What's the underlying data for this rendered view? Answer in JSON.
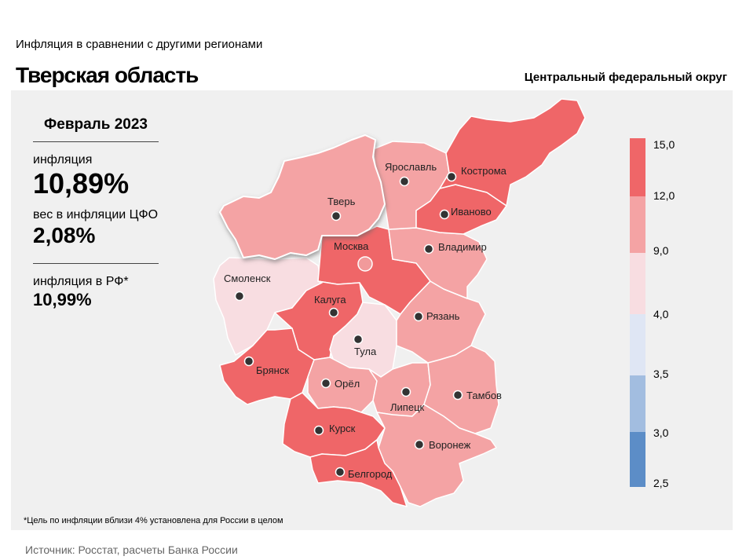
{
  "header": {
    "subtitle": "Инфляция  в сравнении  с другими  регионами",
    "title": "Тверская область",
    "district": "Центральный федеральный округ"
  },
  "stats": {
    "period": "Февраль 2023",
    "inflation_label": "инфляция",
    "inflation_value": "10,89%",
    "weight_label": "вес в инфляции  ЦФО",
    "weight_value": "2,08%",
    "rf_label": "инфляция  в РФ*",
    "rf_value": "10,99%"
  },
  "map": {
    "selected_region": "Тверь",
    "regions": [
      {
        "name": "Тверь",
        "band": "9-12",
        "color": "#f4a3a4"
      },
      {
        "name": "Ярославль",
        "band": "9-12",
        "color": "#f4a3a4"
      },
      {
        "name": "Кострома",
        "band": "12-15",
        "color": "#ef6668"
      },
      {
        "name": "Иваново",
        "band": "12-15",
        "color": "#ef6668"
      },
      {
        "name": "Москва",
        "band": "12-15",
        "color": "#ef6668"
      },
      {
        "name": "Владимир",
        "band": "9-12",
        "color": "#f4a3a4"
      },
      {
        "name": "Смоленск",
        "band": "4-9",
        "color": "#f8dde1"
      },
      {
        "name": "Калуга",
        "band": "12-15",
        "color": "#ef6668"
      },
      {
        "name": "Рязань",
        "band": "9-12",
        "color": "#f4a3a4"
      },
      {
        "name": "Тула",
        "band": "4-9",
        "color": "#f8dde1"
      },
      {
        "name": "Брянск",
        "band": "12-15",
        "color": "#ef6668"
      },
      {
        "name": "Орёл",
        "band": "9-12",
        "color": "#f4a3a4"
      },
      {
        "name": "Липецк",
        "band": "9-12",
        "color": "#f4a3a4"
      },
      {
        "name": "Тамбов",
        "band": "9-12",
        "color": "#f4a3a4"
      },
      {
        "name": "Курск",
        "band": "12-15",
        "color": "#ef6668"
      },
      {
        "name": "Воронеж",
        "band": "9-12",
        "color": "#f4a3a4"
      },
      {
        "name": "Белгород",
        "band": "12-15",
        "color": "#ef6668"
      }
    ]
  },
  "legend": {
    "ticks": [
      "15,0",
      "12,0",
      "9,0",
      "4,0",
      "3,5",
      "3,0",
      "2,5"
    ],
    "colors": [
      "#ef6668",
      "#f4a3a4",
      "#f8dde1",
      "#dfe6f4",
      "#a2bde0",
      "#5c8dc7"
    ]
  },
  "footnote": "*Цель по инфляции вблизи 4% установлена для России в целом",
  "source": "Источник: Росстат, расчеты Банка России"
}
